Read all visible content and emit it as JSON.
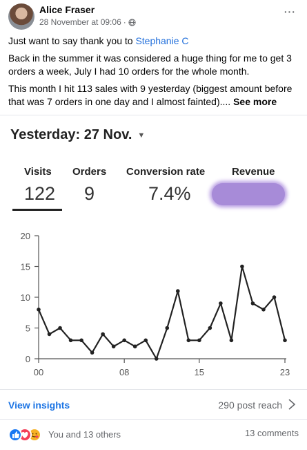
{
  "post": {
    "author": "Alice Fraser",
    "timestamp": "28 November at 09:06",
    "separator": "·",
    "more_icon": "···",
    "paragraph1_prefix": "Just want to say thank you to ",
    "mention": "Stephanie C",
    "paragraph2": "Back in the summer it was considered a huge thing for me to get 3 orders a week, July I had 10 orders for the whole month.",
    "paragraph3": "This month I hit 113 sales with 9 yesterday (biggest amount before that was 7 orders in one day and I almost fainted)....",
    "see_more": "See more"
  },
  "screenshot": {
    "date_label": "Yesterday: 27 Nov.",
    "caret": "▼",
    "stats": [
      {
        "label": "Visits",
        "value": "122"
      },
      {
        "label": "Orders",
        "value": "9"
      },
      {
        "label": "Conversion rate",
        "value": "7.4%"
      },
      {
        "label": "Revenue",
        "value": ""
      }
    ]
  },
  "chart_data": {
    "type": "line",
    "x": [
      0,
      1,
      2,
      3,
      4,
      5,
      6,
      7,
      8,
      9,
      10,
      11,
      12,
      13,
      14,
      15,
      16,
      17,
      18,
      19,
      20,
      21,
      22,
      23
    ],
    "values": [
      8,
      4,
      5,
      3,
      3,
      1,
      4,
      2,
      3,
      2,
      3,
      0,
      5,
      11,
      3,
      3,
      5,
      9,
      3,
      15,
      9,
      8,
      10,
      3
    ],
    "x_tick_values": [
      0,
      8,
      15,
      23
    ],
    "x_tick_labels": [
      "00",
      "08",
      "15",
      "23"
    ],
    "y_ticks": [
      0,
      5,
      10,
      15,
      20
    ],
    "ylim": [
      0,
      20
    ],
    "xlim": [
      0,
      23
    ],
    "grid": false,
    "line_color": "#222222"
  },
  "insights": {
    "view_label": "View insights",
    "reach_label": "290 post reach"
  },
  "reactions": {
    "summary": "You and 13 others",
    "comments": "13 comments",
    "icons": [
      "like-icon",
      "love-icon",
      "care-icon"
    ],
    "like_color": "#1877f2",
    "love_color": "#f33e58",
    "care_color": "#f7b125"
  }
}
